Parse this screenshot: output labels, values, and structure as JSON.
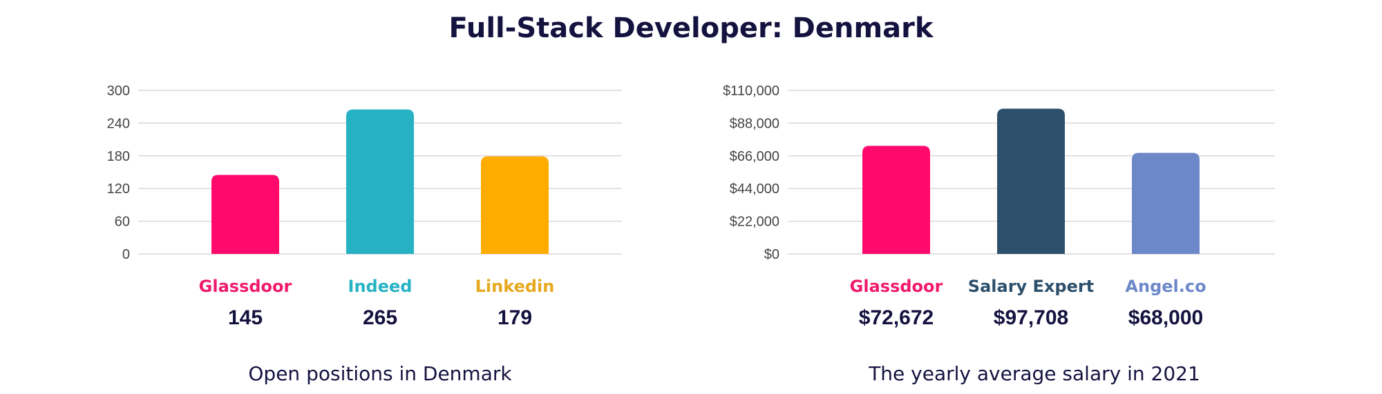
{
  "title": "Full-Stack Developer: Denmark",
  "chart_data": [
    {
      "type": "bar",
      "caption": "Open positions in Denmark",
      "categories": [
        "Glassdoor",
        "Indeed",
        "Linkedin"
      ],
      "values": [
        145,
        265,
        179
      ],
      "value_labels": [
        "145",
        "265",
        "179"
      ],
      "colors": [
        "#ff0a6c",
        "#27b2c4",
        "#ffac00"
      ],
      "label_colors": [
        "#ef1a6c",
        "#27b2c4",
        "#e6a91e"
      ],
      "ylim": [
        0,
        300
      ],
      "yticks": [
        0,
        60,
        120,
        180,
        240,
        300
      ],
      "ytick_labels": [
        "0",
        "60",
        "120",
        "180",
        "240",
        "300"
      ],
      "grid": true
    },
    {
      "type": "bar",
      "caption": "The yearly average salary in 2021",
      "categories": [
        "Glassdoor",
        "Salary Expert",
        "Angel.co"
      ],
      "values": [
        72672,
        97708,
        68000
      ],
      "value_labels": [
        "$72,672",
        "$97,708",
        "$68,000"
      ],
      "colors": [
        "#ff0a6c",
        "#2c4f6b",
        "#6d88c8"
      ],
      "label_colors": [
        "#ef1a6c",
        "#2c4f6b",
        "#6d88c8"
      ],
      "ylim": [
        0,
        110000
      ],
      "yticks": [
        0,
        22000,
        44000,
        66000,
        88000,
        110000
      ],
      "ytick_labels": [
        "$0",
        "$22,000",
        "$44,000",
        "$66,000",
        "$88,000",
        "$110,000"
      ],
      "grid": true
    }
  ]
}
